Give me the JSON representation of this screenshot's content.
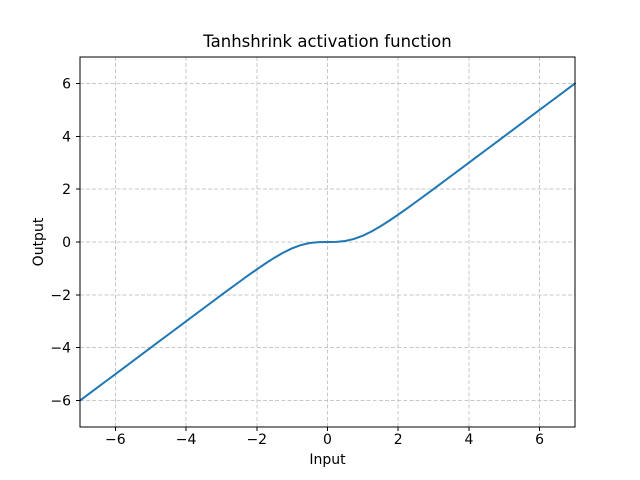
{
  "chart_data": {
    "type": "line",
    "title": "Tanhshrink activation function",
    "xlabel": "Input",
    "ylabel": "Output",
    "xlim": [
      -7,
      7
    ],
    "ylim": [
      -7,
      7
    ],
    "xticks": [
      -6,
      -4,
      -2,
      0,
      2,
      4,
      6
    ],
    "yticks": [
      -6,
      -4,
      -2,
      0,
      2,
      4,
      6
    ],
    "xtick_labels": [
      "−6",
      "−4",
      "−2",
      "0",
      "2",
      "4",
      "6"
    ],
    "ytick_labels": [
      "−6",
      "−4",
      "−2",
      "0",
      "2",
      "4",
      "6"
    ],
    "grid": true,
    "grid_style": "dashed",
    "legend": "none",
    "series": [
      {
        "name": "tanhshrink",
        "formula": "y = x - tanh(x)",
        "color": "#1f77b4",
        "line_width": 2,
        "x": [
          -7,
          -6.75,
          -6.5,
          -6.25,
          -6,
          -5.75,
          -5.5,
          -5.25,
          -5,
          -4.75,
          -4.5,
          -4.25,
          -4,
          -3.75,
          -3.5,
          -3.25,
          -3,
          -2.75,
          -2.5,
          -2.25,
          -2,
          -1.75,
          -1.5,
          -1.25,
          -1,
          -0.75,
          -0.5,
          -0.25,
          0,
          0.25,
          0.5,
          0.75,
          1,
          1.25,
          1.5,
          1.75,
          2,
          2.25,
          2.5,
          2.75,
          3,
          3.25,
          3.5,
          3.75,
          4,
          4.25,
          4.5,
          4.75,
          5,
          5.25,
          5.5,
          5.75,
          6,
          6.25,
          6.5,
          6.75,
          7
        ],
        "y": [
          -6,
          -5.75,
          -5.5,
          -5.25,
          -5,
          -4.75,
          -4.5,
          -4.2501,
          -4.0001,
          -3.7502,
          -3.5002,
          -3.2504,
          -3.0007,
          -2.7511,
          -2.5018,
          -2.253,
          -2.0049,
          -1.7581,
          -1.5134,
          -1.272,
          -1.036,
          -0.8086,
          -0.5949,
          -0.4017,
          -0.2384,
          -0.1149,
          -0.0379,
          -0.0051,
          0,
          0.0051,
          0.0379,
          0.1149,
          0.2384,
          0.4017,
          0.5949,
          0.8086,
          1.036,
          1.272,
          1.5134,
          1.7581,
          2.0049,
          2.253,
          2.5018,
          2.7511,
          3.0007,
          3.2504,
          3.5002,
          3.7502,
          4.0001,
          4.2501,
          4.5,
          4.75,
          5,
          5.25,
          5.5,
          5.75,
          6
        ]
      }
    ],
    "colors": {
      "line": "#1f77b4",
      "grid": "#c8c8c8",
      "axes": "#000000",
      "text": "#000000",
      "background": "#ffffff"
    }
  }
}
